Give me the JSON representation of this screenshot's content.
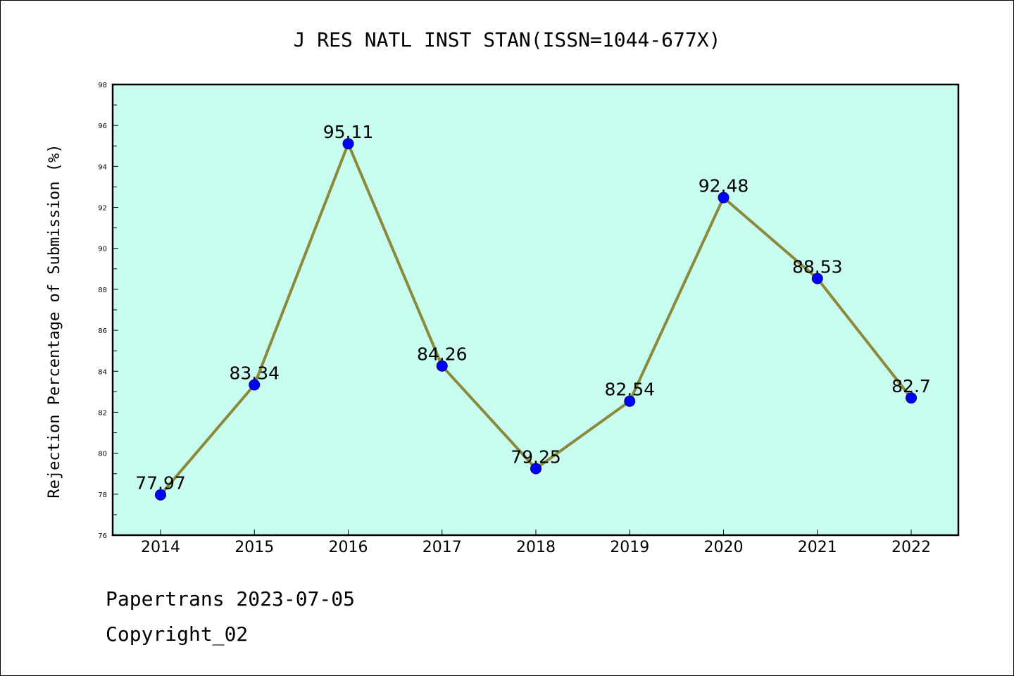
{
  "chart_data": {
    "type": "line",
    "title": "J RES NATL INST STAN(ISSN=1044-677X)",
    "ylabel": "Rejection Percentage of Submission (%)",
    "xlabel": "",
    "x": [
      "2014",
      "2015",
      "2016",
      "2017",
      "2018",
      "2019",
      "2020",
      "2021",
      "2022"
    ],
    "values": [
      77.97,
      83.34,
      95.11,
      84.26,
      79.25,
      82.54,
      92.48,
      88.53,
      82.7
    ],
    "data_labels": [
      "77.97",
      "83.34",
      "95.11",
      "84.26",
      "79.25",
      "82.54",
      "92.48",
      "88.53",
      "82.7"
    ],
    "ylim": [
      76,
      98
    ],
    "yticks": [
      76,
      78,
      80,
      82,
      84,
      86,
      88,
      90,
      92,
      94,
      96,
      98
    ],
    "grid": false,
    "colors": {
      "plot_bg": "#c8fcee",
      "line": "#8b8a3c",
      "marker": "#0000ff"
    }
  },
  "footer": {
    "line1": "Papertrans 2023-07-05",
    "line2": "Copyright_02"
  }
}
